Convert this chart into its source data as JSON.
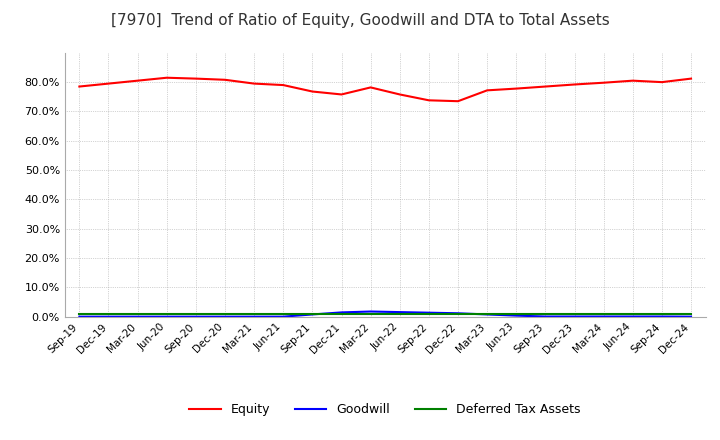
{
  "title": "[7970]  Trend of Ratio of Equity, Goodwill and DTA to Total Assets",
  "title_fontsize": 11,
  "x_labels": [
    "Sep-19",
    "Dec-19",
    "Mar-20",
    "Jun-20",
    "Sep-20",
    "Dec-20",
    "Mar-21",
    "Jun-21",
    "Sep-21",
    "Dec-21",
    "Mar-22",
    "Jun-22",
    "Sep-22",
    "Dec-22",
    "Mar-23",
    "Jun-23",
    "Sep-23",
    "Dec-23",
    "Mar-24",
    "Jun-24",
    "Sep-24",
    "Dec-24"
  ],
  "equity": [
    78.5,
    79.5,
    80.5,
    81.5,
    81.2,
    80.8,
    79.5,
    79.0,
    76.8,
    75.8,
    78.2,
    75.8,
    73.8,
    73.5,
    77.2,
    77.8,
    78.5,
    79.2,
    79.8,
    80.5,
    80.0,
    81.2
  ],
  "goodwill": [
    0.05,
    0.05,
    0.05,
    0.05,
    0.05,
    0.05,
    0.05,
    0.05,
    0.8,
    1.5,
    1.8,
    1.6,
    1.4,
    1.2,
    0.8,
    0.4,
    0.1,
    0.1,
    0.1,
    0.1,
    0.1,
    0.05
  ],
  "dta": [
    0.8,
    0.8,
    0.8,
    0.8,
    0.8,
    0.8,
    0.8,
    0.8,
    0.8,
    0.8,
    0.8,
    0.8,
    0.8,
    0.8,
    0.8,
    0.8,
    0.8,
    0.8,
    0.8,
    0.8,
    0.8,
    0.8
  ],
  "equity_color": "#FF0000",
  "goodwill_color": "#0000FF",
  "dta_color": "#008000",
  "ylim": [
    0,
    90
  ],
  "yticks": [
    0,
    10,
    20,
    30,
    40,
    50,
    60,
    70,
    80
  ],
  "grid_color": "#aaaaaa",
  "bg_color": "#ffffff",
  "legend_labels": [
    "Equity",
    "Goodwill",
    "Deferred Tax Assets"
  ]
}
